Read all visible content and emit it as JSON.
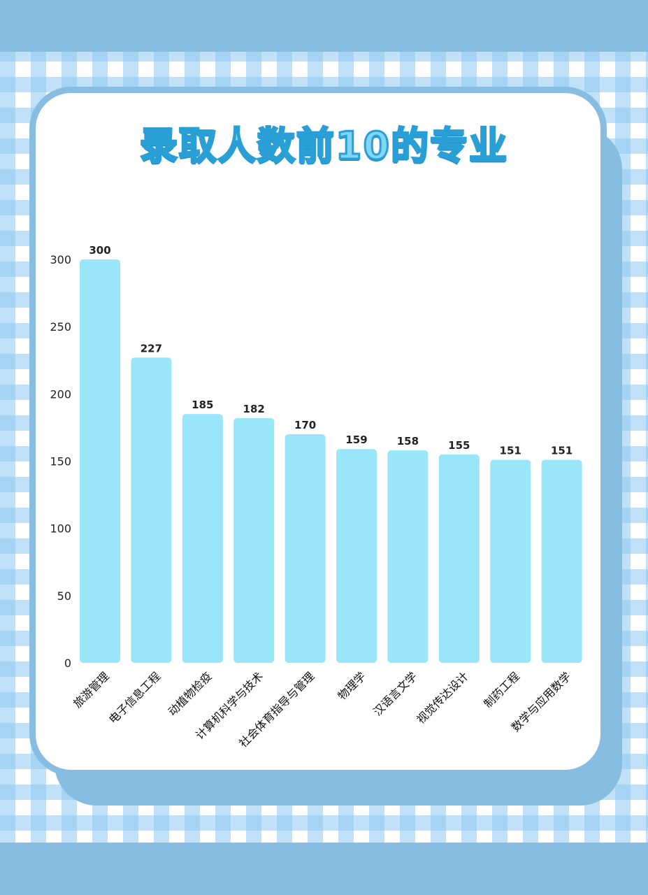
{
  "chart_data": {
    "type": "bar",
    "title": "录取人数前10的专业",
    "categories": [
      "旅游管理",
      "电子信息工程",
      "动植物检疫",
      "计算机科学与技术",
      "社会体育指导与管理",
      "物理学",
      "汉语言文学",
      "视觉传达设计",
      "制药工程",
      "数学与应用数学"
    ],
    "values": [
      300,
      227,
      185,
      182,
      170,
      159,
      158,
      155,
      151,
      151
    ],
    "yticks": [
      0,
      50,
      100,
      150,
      200,
      250,
      300
    ],
    "ylim": [
      0,
      300
    ],
    "grid": false,
    "bar_color": "#99e6fb"
  },
  "colors": {
    "band": "#86bde0",
    "title_fill": "#7fd6f7",
    "title_stroke": "#2a9fd6"
  }
}
